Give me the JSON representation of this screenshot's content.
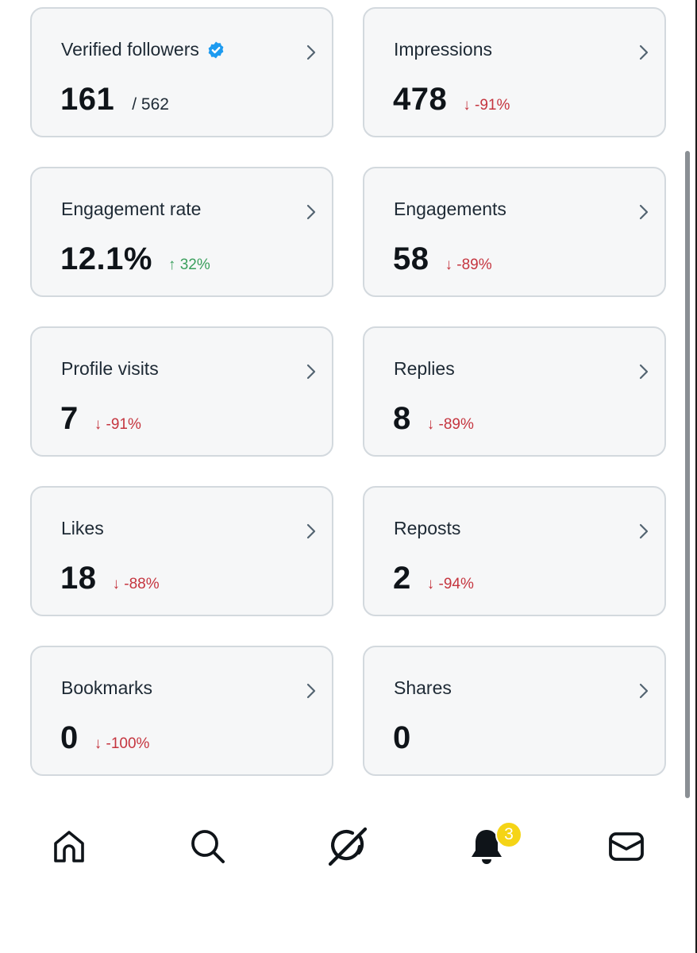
{
  "cards": [
    {
      "title": "Verified followers",
      "value": "161",
      "total": "/ 562",
      "change": "",
      "direction": ""
    },
    {
      "title": "Impressions",
      "value": "478",
      "total": "",
      "change": "↓ -91%",
      "direction": "down"
    },
    {
      "title": "Engagement rate",
      "value": "12.1%",
      "total": "",
      "change": "↑ 32%",
      "direction": "up"
    },
    {
      "title": "Engagements",
      "value": "58",
      "total": "",
      "change": "↓ -89%",
      "direction": "down"
    },
    {
      "title": "Profile visits",
      "value": "7",
      "total": "",
      "change": "↓ -91%",
      "direction": "down"
    },
    {
      "title": "Replies",
      "value": "8",
      "total": "",
      "change": "↓ -89%",
      "direction": "down"
    },
    {
      "title": "Likes",
      "value": "18",
      "total": "",
      "change": "↓ -88%",
      "direction": "down"
    },
    {
      "title": "Reposts",
      "value": "2",
      "total": "",
      "change": "↓ -94%",
      "direction": "down"
    },
    {
      "title": "Bookmarks",
      "value": "0",
      "total": "",
      "change": "↓ -100%",
      "direction": "down"
    },
    {
      "title": "Shares",
      "value": "0",
      "total": "",
      "change": "",
      "direction": ""
    }
  ],
  "icons": {
    "verified": "verified-badge-icon",
    "chevron": "chevron-right-icon",
    "home": "home-icon",
    "search": "search-icon",
    "grok": "grok-icon",
    "notifications": "bell-icon",
    "messages": "mail-icon"
  },
  "nav": {
    "notifications_badge": "3"
  },
  "colors": {
    "card_bg": "#f6f7f8",
    "card_border": "#d3d9de",
    "negative": "#c5353f",
    "positive": "#3a9f5c",
    "verified_blue": "#1d9bf0",
    "badge_yellow": "#f5d416"
  }
}
